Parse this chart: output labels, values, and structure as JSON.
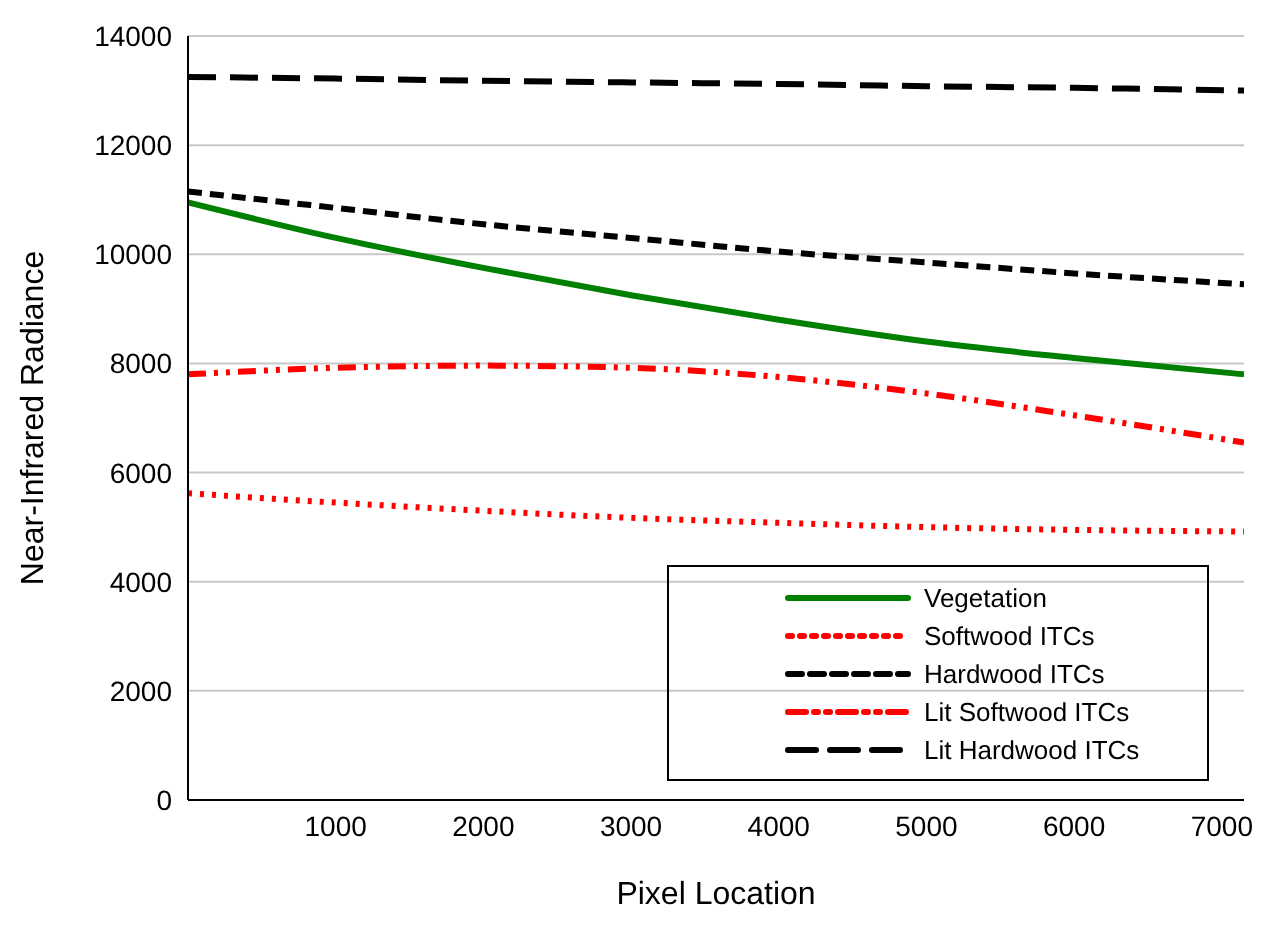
{
  "chart_data": {
    "type": "line",
    "xlabel": "Pixel Location",
    "ylabel": "Near-Infrared Radiance",
    "x": [
      0,
      1000,
      2000,
      3000,
      4000,
      5000,
      6000,
      7150
    ],
    "xlim": [
      0,
      7150
    ],
    "xticks": [
      1000,
      2000,
      3000,
      4000,
      5000,
      6000,
      7000
    ],
    "ylim": [
      0,
      14000
    ],
    "yticks": [
      0,
      2000,
      4000,
      6000,
      8000,
      10000,
      12000,
      14000
    ],
    "grid": "y",
    "legend": "bottom right",
    "marker": "none",
    "series": [
      {
        "name": "Vegetation",
        "color": "#008000",
        "line_style": "solid",
        "values": [
          10950,
          10300,
          9750,
          9250,
          8800,
          8400,
          8100,
          7800
        ]
      },
      {
        "name": "Softwood ITCs",
        "color": "#ff0000",
        "line_style": "dotted",
        "values": [
          5620,
          5450,
          5300,
          5170,
          5080,
          5000,
          4950,
          4920
        ]
      },
      {
        "name": "Hardwood ITCs",
        "color": "#000000",
        "line_style": "dashed",
        "values": [
          11150,
          10850,
          10550,
          10300,
          10050,
          9850,
          9650,
          9450
        ]
      },
      {
        "name": "Lit Softwood ITCs",
        "color": "#ff0000",
        "line_style": "dashdot",
        "values": [
          7800,
          7920,
          7960,
          7920,
          7750,
          7450,
          7050,
          6550
        ]
      },
      {
        "name": "Lit Hardwood ITCs",
        "color": "#000000",
        "line_style": "longdash",
        "values": [
          13250,
          13220,
          13180,
          13150,
          13120,
          13080,
          13050,
          13000
        ]
      }
    ]
  }
}
